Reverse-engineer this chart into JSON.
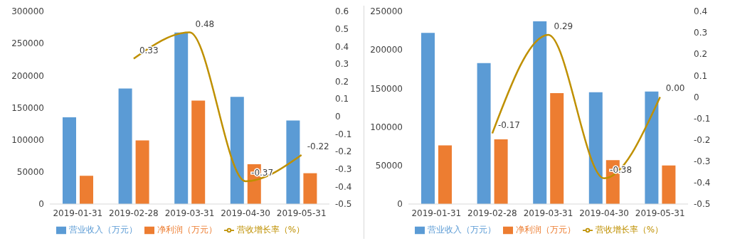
{
  "chart_data": [
    {
      "type": "bar",
      "categories": [
        "2019-01-31",
        "2019-02-28",
        "2019-03-31",
        "2019-04-30",
        "2019-05-31"
      ],
      "series": [
        {
          "name": "营业收入（万元）",
          "color": "#5b9bd5",
          "values": [
            135000,
            180000,
            267000,
            167000,
            130000
          ]
        },
        {
          "name": "净利润（万元）",
          "color": "#ed7d31",
          "values": [
            44000,
            99000,
            161000,
            62000,
            48000
          ]
        },
        {
          "name": "营收增长率（%）",
          "type": "line",
          "axis": "y2",
          "color": "#bf9000",
          "values": [
            null,
            0.33,
            0.48,
            -0.37,
            -0.22
          ],
          "value_labels": [
            null,
            "0.33",
            "0.48",
            "-0.37",
            "-0.22"
          ]
        }
      ],
      "ylim": [
        0,
        300000
      ],
      "yticks": [
        0,
        50000,
        100000,
        150000,
        200000,
        250000,
        300000
      ],
      "y2lim": [
        -0.5,
        0.6
      ],
      "y2ticks": [
        -0.5,
        -0.4,
        -0.3,
        -0.2,
        -0.1,
        0,
        0.1,
        0.2,
        0.3,
        0.4,
        0.5,
        0.6
      ],
      "legend": "bottom"
    },
    {
      "type": "bar",
      "categories": [
        "2019-01-31",
        "2019-02-28",
        "2019-03-31",
        "2019-04-30",
        "2019-05-31"
      ],
      "series": [
        {
          "name": "营业收入（万元）",
          "color": "#5b9bd5",
          "values": [
            222000,
            183000,
            237000,
            145000,
            146000
          ]
        },
        {
          "name": "净利润（万元）",
          "color": "#ed7d31",
          "values": [
            76000,
            84000,
            144000,
            57000,
            50000
          ]
        },
        {
          "name": "营收增长率（%）",
          "type": "line",
          "axis": "y2",
          "color": "#bf9000",
          "values": [
            null,
            -0.17,
            0.29,
            -0.38,
            0.0
          ],
          "value_labels": [
            null,
            "-0.17",
            "0.29",
            "-0.38",
            "0.00"
          ]
        }
      ],
      "ylim": [
        0,
        250000
      ],
      "yticks": [
        0,
        50000,
        100000,
        150000,
        200000,
        250000
      ],
      "y2lim": [
        -0.5,
        0.4
      ],
      "y2ticks": [
        -0.5,
        -0.4,
        -0.3,
        -0.2,
        -0.1,
        0,
        0.1,
        0.2,
        0.3,
        0.4
      ],
      "legend": "bottom"
    }
  ]
}
